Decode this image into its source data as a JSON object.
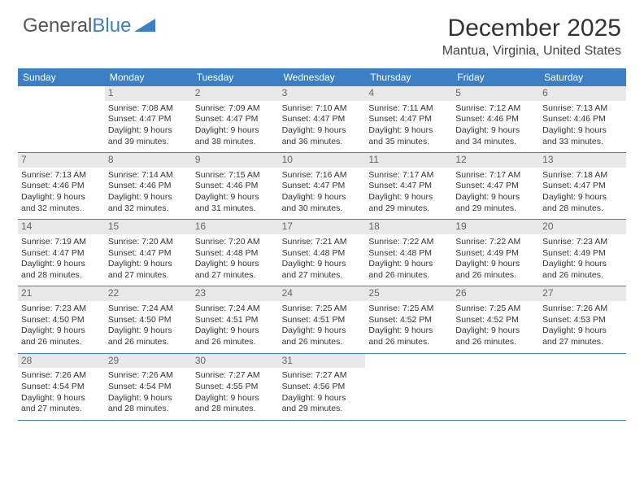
{
  "logo": {
    "text1": "General",
    "text2": "Blue"
  },
  "title": "December 2025",
  "location": "Mantua, Virginia, United States",
  "header_bg": "#3b7fc4",
  "daynum_bg": "#e8e8e8",
  "dayNames": [
    "Sunday",
    "Monday",
    "Tuesday",
    "Wednesday",
    "Thursday",
    "Friday",
    "Saturday"
  ],
  "weeks": [
    [
      {
        "n": "",
        "sr": "",
        "ss": "",
        "dl": ""
      },
      {
        "n": "1",
        "sr": "Sunrise: 7:08 AM",
        "ss": "Sunset: 4:47 PM",
        "dl": "Daylight: 9 hours and 39 minutes."
      },
      {
        "n": "2",
        "sr": "Sunrise: 7:09 AM",
        "ss": "Sunset: 4:47 PM",
        "dl": "Daylight: 9 hours and 38 minutes."
      },
      {
        "n": "3",
        "sr": "Sunrise: 7:10 AM",
        "ss": "Sunset: 4:47 PM",
        "dl": "Daylight: 9 hours and 36 minutes."
      },
      {
        "n": "4",
        "sr": "Sunrise: 7:11 AM",
        "ss": "Sunset: 4:47 PM",
        "dl": "Daylight: 9 hours and 35 minutes."
      },
      {
        "n": "5",
        "sr": "Sunrise: 7:12 AM",
        "ss": "Sunset: 4:46 PM",
        "dl": "Daylight: 9 hours and 34 minutes."
      },
      {
        "n": "6",
        "sr": "Sunrise: 7:13 AM",
        "ss": "Sunset: 4:46 PM",
        "dl": "Daylight: 9 hours and 33 minutes."
      }
    ],
    [
      {
        "n": "7",
        "sr": "Sunrise: 7:13 AM",
        "ss": "Sunset: 4:46 PM",
        "dl": "Daylight: 9 hours and 32 minutes."
      },
      {
        "n": "8",
        "sr": "Sunrise: 7:14 AM",
        "ss": "Sunset: 4:46 PM",
        "dl": "Daylight: 9 hours and 32 minutes."
      },
      {
        "n": "9",
        "sr": "Sunrise: 7:15 AM",
        "ss": "Sunset: 4:46 PM",
        "dl": "Daylight: 9 hours and 31 minutes."
      },
      {
        "n": "10",
        "sr": "Sunrise: 7:16 AM",
        "ss": "Sunset: 4:47 PM",
        "dl": "Daylight: 9 hours and 30 minutes."
      },
      {
        "n": "11",
        "sr": "Sunrise: 7:17 AM",
        "ss": "Sunset: 4:47 PM",
        "dl": "Daylight: 9 hours and 29 minutes."
      },
      {
        "n": "12",
        "sr": "Sunrise: 7:17 AM",
        "ss": "Sunset: 4:47 PM",
        "dl": "Daylight: 9 hours and 29 minutes."
      },
      {
        "n": "13",
        "sr": "Sunrise: 7:18 AM",
        "ss": "Sunset: 4:47 PM",
        "dl": "Daylight: 9 hours and 28 minutes."
      }
    ],
    [
      {
        "n": "14",
        "sr": "Sunrise: 7:19 AM",
        "ss": "Sunset: 4:47 PM",
        "dl": "Daylight: 9 hours and 28 minutes."
      },
      {
        "n": "15",
        "sr": "Sunrise: 7:20 AM",
        "ss": "Sunset: 4:47 PM",
        "dl": "Daylight: 9 hours and 27 minutes."
      },
      {
        "n": "16",
        "sr": "Sunrise: 7:20 AM",
        "ss": "Sunset: 4:48 PM",
        "dl": "Daylight: 9 hours and 27 minutes."
      },
      {
        "n": "17",
        "sr": "Sunrise: 7:21 AM",
        "ss": "Sunset: 4:48 PM",
        "dl": "Daylight: 9 hours and 27 minutes."
      },
      {
        "n": "18",
        "sr": "Sunrise: 7:22 AM",
        "ss": "Sunset: 4:48 PM",
        "dl": "Daylight: 9 hours and 26 minutes."
      },
      {
        "n": "19",
        "sr": "Sunrise: 7:22 AM",
        "ss": "Sunset: 4:49 PM",
        "dl": "Daylight: 9 hours and 26 minutes."
      },
      {
        "n": "20",
        "sr": "Sunrise: 7:23 AM",
        "ss": "Sunset: 4:49 PM",
        "dl": "Daylight: 9 hours and 26 minutes."
      }
    ],
    [
      {
        "n": "21",
        "sr": "Sunrise: 7:23 AM",
        "ss": "Sunset: 4:50 PM",
        "dl": "Daylight: 9 hours and 26 minutes."
      },
      {
        "n": "22",
        "sr": "Sunrise: 7:24 AM",
        "ss": "Sunset: 4:50 PM",
        "dl": "Daylight: 9 hours and 26 minutes."
      },
      {
        "n": "23",
        "sr": "Sunrise: 7:24 AM",
        "ss": "Sunset: 4:51 PM",
        "dl": "Daylight: 9 hours and 26 minutes."
      },
      {
        "n": "24",
        "sr": "Sunrise: 7:25 AM",
        "ss": "Sunset: 4:51 PM",
        "dl": "Daylight: 9 hours and 26 minutes."
      },
      {
        "n": "25",
        "sr": "Sunrise: 7:25 AM",
        "ss": "Sunset: 4:52 PM",
        "dl": "Daylight: 9 hours and 26 minutes."
      },
      {
        "n": "26",
        "sr": "Sunrise: 7:25 AM",
        "ss": "Sunset: 4:52 PM",
        "dl": "Daylight: 9 hours and 26 minutes."
      },
      {
        "n": "27",
        "sr": "Sunrise: 7:26 AM",
        "ss": "Sunset: 4:53 PM",
        "dl": "Daylight: 9 hours and 27 minutes."
      }
    ],
    [
      {
        "n": "28",
        "sr": "Sunrise: 7:26 AM",
        "ss": "Sunset: 4:54 PM",
        "dl": "Daylight: 9 hours and 27 minutes."
      },
      {
        "n": "29",
        "sr": "Sunrise: 7:26 AM",
        "ss": "Sunset: 4:54 PM",
        "dl": "Daylight: 9 hours and 28 minutes."
      },
      {
        "n": "30",
        "sr": "Sunrise: 7:27 AM",
        "ss": "Sunset: 4:55 PM",
        "dl": "Daylight: 9 hours and 28 minutes."
      },
      {
        "n": "31",
        "sr": "Sunrise: 7:27 AM",
        "ss": "Sunset: 4:56 PM",
        "dl": "Daylight: 9 hours and 29 minutes."
      },
      {
        "n": "",
        "sr": "",
        "ss": "",
        "dl": ""
      },
      {
        "n": "",
        "sr": "",
        "ss": "",
        "dl": ""
      },
      {
        "n": "",
        "sr": "",
        "ss": "",
        "dl": ""
      }
    ]
  ]
}
